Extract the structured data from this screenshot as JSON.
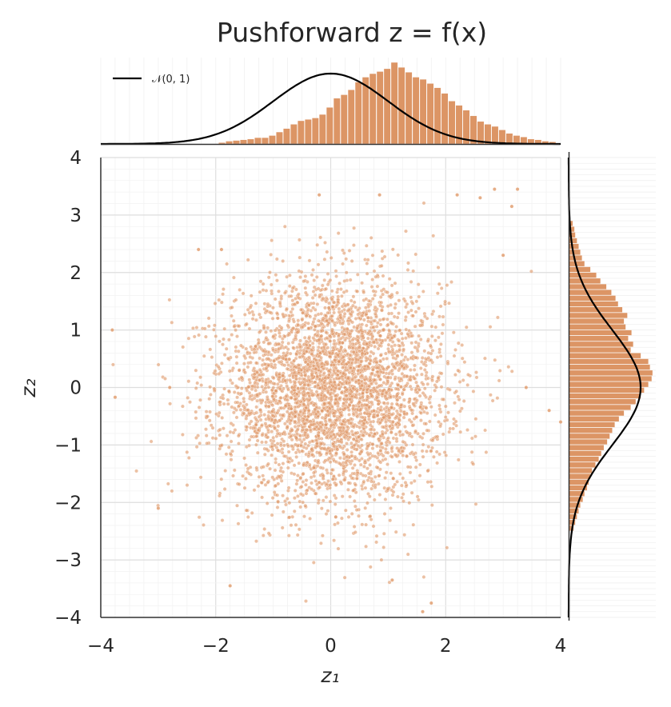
{
  "title": "Pushforward  z = f(x)",
  "legend_label": "𝒩(0, 1)",
  "xlabel": "z₁",
  "ylabel": "z₂",
  "colors": {
    "scatter": "#e09868",
    "hist": "#dc9565",
    "curve": "#000000",
    "grid": "#e6e6e6",
    "axis": "#333333"
  },
  "chart_data": [
    {
      "type": "scatter",
      "title": "Pushforward  z = f(x)",
      "xlabel": "z₁",
      "ylabel": "z₂",
      "xlim": [
        -4,
        4
      ],
      "ylim": [
        -4,
        4
      ],
      "xticks": [
        "−4",
        "−2",
        "0",
        "2",
        "4"
      ],
      "yticks": [
        "−4",
        "−3",
        "−2",
        "−1",
        "0",
        "1",
        "2",
        "3",
        "4"
      ],
      "grid": true,
      "n_points": 4000,
      "outliers": [
        {
          "x": -3.8,
          "y": 1.0
        },
        {
          "x": -3.75,
          "y": -0.17
        },
        {
          "x": -3.0,
          "y": -2.1
        },
        {
          "x": -2.3,
          "y": 2.4
        },
        {
          "x": -1.9,
          "y": 2.4
        },
        {
          "x": -0.2,
          "y": 3.35
        },
        {
          "x": 0.85,
          "y": 3.35
        },
        {
          "x": 2.2,
          "y": 3.35
        },
        {
          "x": 2.6,
          "y": 3.3
        },
        {
          "x": 2.85,
          "y": 3.45
        },
        {
          "x": 3.25,
          "y": 3.45
        },
        {
          "x": 3.15,
          "y": 3.15
        },
        {
          "x": 3.0,
          "y": 2.3
        },
        {
          "x": 1.75,
          "y": -3.75
        },
        {
          "x": 1.6,
          "y": -3.9
        },
        {
          "x": 1.07,
          "y": -3.35
        },
        {
          "x": -1.75,
          "y": -3.45
        },
        {
          "x": 3.8,
          "y": -0.4
        },
        {
          "x": 4.0,
          "y": -0.6
        },
        {
          "x": -2.8,
          "y": -0.0
        },
        {
          "x": 3.4,
          "y": 0.0
        }
      ]
    },
    {
      "type": "bar",
      "name": "top-marginal-histogram",
      "bins_x_start": -1.95,
      "bin_width": 0.125,
      "values": [
        0.02,
        0.04,
        0.05,
        0.06,
        0.07,
        0.09,
        0.09,
        0.12,
        0.17,
        0.22,
        0.28,
        0.33,
        0.35,
        0.37,
        0.42,
        0.52,
        0.65,
        0.7,
        0.77,
        0.88,
        0.95,
        1.0,
        1.03,
        1.07,
        1.16,
        1.09,
        1.02,
        0.95,
        0.92,
        0.86,
        0.8,
        0.72,
        0.61,
        0.55,
        0.48,
        0.4,
        0.32,
        0.28,
        0.25,
        0.2,
        0.15,
        0.12,
        0.1,
        0.07,
        0.06,
        0.04,
        0.03
      ]
    },
    {
      "type": "bar",
      "name": "right-marginal-histogram",
      "bins_y_start": -2.5,
      "bin_width": 0.1,
      "values": [
        0.06,
        0.08,
        0.1,
        0.12,
        0.14,
        0.17,
        0.19,
        0.22,
        0.24,
        0.26,
        0.28,
        0.32,
        0.36,
        0.39,
        0.42,
        0.46,
        0.49,
        0.52,
        0.55,
        0.6,
        0.66,
        0.74,
        0.8,
        0.86,
        0.9,
        0.95,
        0.99,
        1.0,
        0.97,
        0.95,
        0.86,
        0.74,
        0.77,
        0.71,
        0.75,
        0.68,
        0.66,
        0.7,
        0.64,
        0.59,
        0.56,
        0.51,
        0.45,
        0.38,
        0.33,
        0.26,
        0.19,
        0.16,
        0.14,
        0.12,
        0.1,
        0.08,
        0.07,
        0.05
      ]
    },
    {
      "type": "line",
      "name": "𝒩(0, 1)",
      "function": "standard normal pdf",
      "mean": 0,
      "std": 1
    }
  ]
}
